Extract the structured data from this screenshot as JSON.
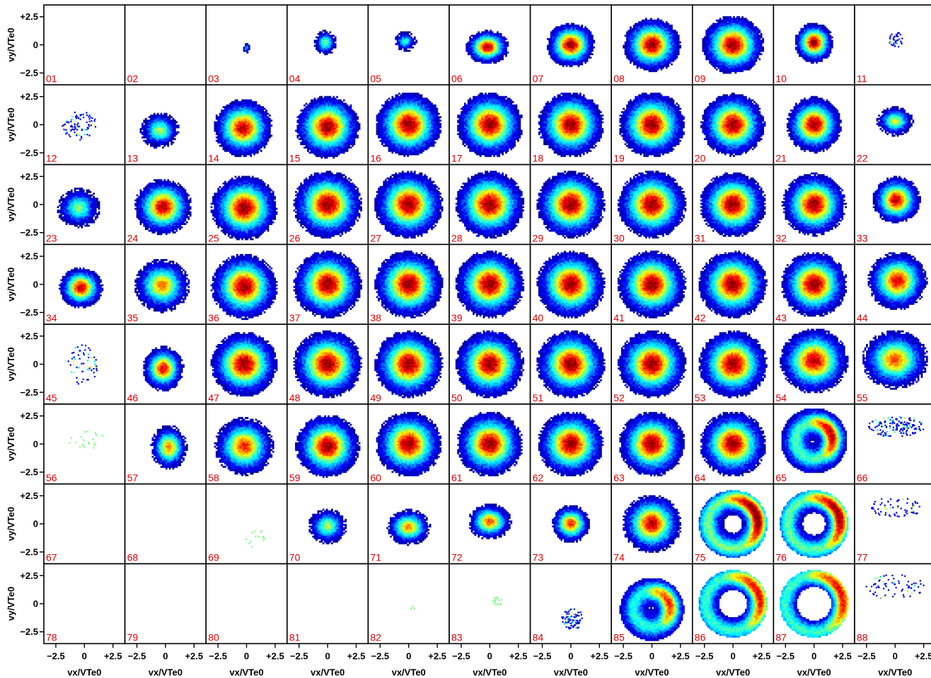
{
  "chart_data": {
    "type": "heatmap",
    "description_layout": "grid",
    "rows": 8,
    "cols": 11,
    "xlabel": "vx/VTe0",
    "ylabel": "vy/VTe0",
    "x_ticks": [
      "−2.5",
      "0",
      "+2.5"
    ],
    "y_ticks": [
      "+2.5",
      "0",
      "−2.5"
    ],
    "xlim": [
      -3.3,
      3.3
    ],
    "ylim": [
      -3.3,
      3.3
    ],
    "colormap": [
      "#00008b",
      "#0000ff",
      "#00a0ff",
      "#00ffff",
      "#80ff80",
      "#ffff00",
      "#ff8000",
      "#ff0000",
      "#8b0000"
    ],
    "label_color": "#e00000",
    "panels": [
      {
        "label": "01",
        "kind": "empty"
      },
      {
        "label": "02",
        "kind": "empty"
      },
      {
        "label": "03",
        "kind": "blob",
        "cx": 0.0,
        "cy": -0.3,
        "rx": 0.3,
        "ry": 0.5,
        "peak": 0.3
      },
      {
        "label": "04",
        "kind": "blob",
        "cx": -0.2,
        "cy": 0.2,
        "rx": 1.0,
        "ry": 1.1,
        "peak": 0.5
      },
      {
        "label": "05",
        "kind": "blob",
        "cx": -0.3,
        "cy": 0.3,
        "rx": 1.0,
        "ry": 0.9,
        "peak": 0.4
      },
      {
        "label": "06",
        "kind": "blob",
        "cx": -0.2,
        "cy": -0.2,
        "rx": 1.9,
        "ry": 1.5,
        "peak": 0.95
      },
      {
        "label": "07",
        "kind": "blob",
        "cx": 0.0,
        "cy": 0.0,
        "rx": 2.1,
        "ry": 2.0,
        "peak": 1.0
      },
      {
        "label": "08",
        "kind": "blob",
        "cx": 0.0,
        "cy": 0.0,
        "rx": 2.5,
        "ry": 2.4,
        "peak": 1.0
      },
      {
        "label": "09",
        "kind": "blob",
        "cx": 0.0,
        "cy": 0.0,
        "rx": 2.7,
        "ry": 2.6,
        "peak": 1.0
      },
      {
        "label": "10",
        "kind": "blob",
        "cx": 0.0,
        "cy": 0.2,
        "rx": 1.7,
        "ry": 1.8,
        "peak": 1.0
      },
      {
        "label": "11",
        "kind": "sparse",
        "cx": 0.0,
        "cy": 0.5,
        "rx": 0.6,
        "ry": 0.7,
        "n": 40
      },
      {
        "label": "12",
        "kind": "sparse",
        "cx": -0.5,
        "cy": 0.0,
        "rx": 1.5,
        "ry": 1.3,
        "n": 90
      },
      {
        "label": "13",
        "kind": "blob",
        "cx": -0.5,
        "cy": -0.5,
        "rx": 1.7,
        "ry": 1.6,
        "peak": 0.55
      },
      {
        "label": "14",
        "kind": "blob",
        "cx": -0.3,
        "cy": -0.3,
        "rx": 2.6,
        "ry": 2.6,
        "peak": 0.95
      },
      {
        "label": "15",
        "kind": "blob",
        "cx": 0.0,
        "cy": -0.2,
        "rx": 2.8,
        "ry": 2.8,
        "peak": 1.0
      },
      {
        "label": "16",
        "kind": "blob",
        "cx": 0.0,
        "cy": 0.0,
        "rx": 2.9,
        "ry": 2.9,
        "peak": 1.0
      },
      {
        "label": "17",
        "kind": "blob",
        "cx": 0.0,
        "cy": 0.0,
        "rx": 2.9,
        "ry": 2.9,
        "peak": 1.0
      },
      {
        "label": "18",
        "kind": "blob",
        "cx": 0.0,
        "cy": 0.0,
        "rx": 2.9,
        "ry": 2.9,
        "peak": 1.0
      },
      {
        "label": "19",
        "kind": "blob",
        "cx": 0.0,
        "cy": 0.0,
        "rx": 2.9,
        "ry": 2.9,
        "peak": 1.0
      },
      {
        "label": "20",
        "kind": "blob",
        "cx": 0.0,
        "cy": 0.0,
        "rx": 2.8,
        "ry": 2.8,
        "peak": 1.0
      },
      {
        "label": "21",
        "kind": "blob",
        "cx": 0.0,
        "cy": 0.0,
        "rx": 2.4,
        "ry": 2.5,
        "peak": 1.0
      },
      {
        "label": "22",
        "kind": "blob",
        "cx": 0.0,
        "cy": 0.3,
        "rx": 1.6,
        "ry": 1.3,
        "peak": 0.6
      },
      {
        "label": "23",
        "kind": "blob",
        "cx": -0.5,
        "cy": -0.3,
        "rx": 1.9,
        "ry": 1.8,
        "peak": 0.5
      },
      {
        "label": "24",
        "kind": "blob",
        "cx": -0.2,
        "cy": -0.2,
        "rx": 2.5,
        "ry": 2.5,
        "peak": 0.95
      },
      {
        "label": "25",
        "kind": "blob",
        "cx": -0.2,
        "cy": -0.3,
        "rx": 2.9,
        "ry": 2.9,
        "peak": 1.0
      },
      {
        "label": "26",
        "kind": "blob",
        "cx": 0.0,
        "cy": 0.0,
        "rx": 3.0,
        "ry": 3.0,
        "peak": 1.0
      },
      {
        "label": "27",
        "kind": "blob",
        "cx": 0.0,
        "cy": 0.0,
        "rx": 3.0,
        "ry": 3.0,
        "peak": 1.0
      },
      {
        "label": "28",
        "kind": "blob",
        "cx": 0.0,
        "cy": 0.0,
        "rx": 3.0,
        "ry": 3.0,
        "peak": 1.0
      },
      {
        "label": "29",
        "kind": "blob",
        "cx": 0.0,
        "cy": 0.0,
        "rx": 3.0,
        "ry": 3.0,
        "peak": 1.0
      },
      {
        "label": "30",
        "kind": "blob",
        "cx": 0.0,
        "cy": 0.0,
        "rx": 3.0,
        "ry": 3.0,
        "peak": 1.0
      },
      {
        "label": "31",
        "kind": "blob",
        "cx": 0.0,
        "cy": 0.0,
        "rx": 2.9,
        "ry": 2.9,
        "peak": 1.0
      },
      {
        "label": "32",
        "kind": "blob",
        "cx": 0.0,
        "cy": 0.0,
        "rx": 2.8,
        "ry": 2.8,
        "peak": 1.0
      },
      {
        "label": "33",
        "kind": "blob",
        "cx": 0.1,
        "cy": 0.4,
        "rx": 2.1,
        "ry": 2.1,
        "peak": 0.95
      },
      {
        "label": "34",
        "kind": "blob",
        "cx": -0.3,
        "cy": -0.3,
        "rx": 1.9,
        "ry": 1.8,
        "peak": 0.95
      },
      {
        "label": "35",
        "kind": "blob",
        "cx": -0.3,
        "cy": -0.1,
        "rx": 2.4,
        "ry": 2.4,
        "peak": 0.75
      },
      {
        "label": "36",
        "kind": "blob",
        "cx": -0.2,
        "cy": -0.2,
        "rx": 2.9,
        "ry": 2.9,
        "peak": 1.0
      },
      {
        "label": "37",
        "kind": "blob",
        "cx": 0.0,
        "cy": 0.0,
        "rx": 3.0,
        "ry": 3.0,
        "peak": 1.0
      },
      {
        "label": "38",
        "kind": "blob",
        "cx": 0.0,
        "cy": 0.0,
        "rx": 3.0,
        "ry": 3.0,
        "peak": 1.0
      },
      {
        "label": "39",
        "kind": "blob",
        "cx": 0.0,
        "cy": 0.0,
        "rx": 3.0,
        "ry": 3.0,
        "peak": 1.0
      },
      {
        "label": "40",
        "kind": "blob",
        "cx": 0.0,
        "cy": 0.0,
        "rx": 3.0,
        "ry": 3.0,
        "peak": 1.0
      },
      {
        "label": "41",
        "kind": "blob",
        "cx": 0.0,
        "cy": 0.0,
        "rx": 3.0,
        "ry": 3.0,
        "peak": 1.0
      },
      {
        "label": "42",
        "kind": "blob",
        "cx": 0.0,
        "cy": 0.0,
        "rx": 3.0,
        "ry": 3.0,
        "peak": 1.0
      },
      {
        "label": "43",
        "kind": "blob",
        "cx": 0.0,
        "cy": 0.0,
        "rx": 2.9,
        "ry": 2.9,
        "peak": 1.0
      },
      {
        "label": "44",
        "kind": "blob",
        "cx": 0.2,
        "cy": 0.3,
        "rx": 2.6,
        "ry": 2.6,
        "peak": 0.9
      },
      {
        "label": "45",
        "kind": "sparse",
        "cx": -0.2,
        "cy": 0.0,
        "rx": 1.3,
        "ry": 1.8,
        "n": 60
      },
      {
        "label": "46",
        "kind": "blob",
        "cx": -0.2,
        "cy": -0.4,
        "rx": 1.8,
        "ry": 2.0,
        "peak": 0.9
      },
      {
        "label": "47",
        "kind": "blob",
        "cx": -0.2,
        "cy": 0.0,
        "rx": 2.9,
        "ry": 2.9,
        "peak": 1.0
      },
      {
        "label": "48",
        "kind": "blob",
        "cx": 0.0,
        "cy": 0.0,
        "rx": 3.0,
        "ry": 3.0,
        "peak": 1.0
      },
      {
        "label": "49",
        "kind": "blob",
        "cx": 0.0,
        "cy": 0.0,
        "rx": 3.0,
        "ry": 3.0,
        "peak": 1.0
      },
      {
        "label": "50",
        "kind": "blob",
        "cx": 0.0,
        "cy": 0.0,
        "rx": 3.0,
        "ry": 3.0,
        "peak": 1.0
      },
      {
        "label": "51",
        "kind": "blob",
        "cx": 0.0,
        "cy": 0.0,
        "rx": 3.0,
        "ry": 3.0,
        "peak": 1.0
      },
      {
        "label": "52",
        "kind": "blob",
        "cx": 0.0,
        "cy": 0.0,
        "rx": 3.0,
        "ry": 3.0,
        "peak": 1.0
      },
      {
        "label": "53",
        "kind": "blob",
        "cx": 0.0,
        "cy": 0.0,
        "rx": 3.0,
        "ry": 3.0,
        "peak": 1.0
      },
      {
        "label": "54",
        "kind": "blob",
        "cx": 0.0,
        "cy": 0.3,
        "rx": 3.0,
        "ry": 2.9,
        "peak": 0.95
      },
      {
        "label": "55",
        "kind": "blob",
        "cx": 0.0,
        "cy": 0.4,
        "rx": 2.9,
        "ry": 2.6,
        "peak": 0.8
      },
      {
        "label": "56",
        "kind": "sparse",
        "cx": 0.0,
        "cy": 0.5,
        "rx": 1.7,
        "ry": 0.9,
        "n": 20,
        "color": "#80ff80"
      },
      {
        "label": "57",
        "kind": "blob",
        "cx": 0.3,
        "cy": -0.3,
        "rx": 1.6,
        "ry": 2.0,
        "peak": 0.75
      },
      {
        "label": "58",
        "kind": "blob",
        "cx": -0.2,
        "cy": -0.2,
        "rx": 2.6,
        "ry": 2.6,
        "peak": 0.85
      },
      {
        "label": "59",
        "kind": "blob",
        "cx": 0.0,
        "cy": -0.2,
        "rx": 2.8,
        "ry": 2.8,
        "peak": 1.0
      },
      {
        "label": "60",
        "kind": "blob",
        "cx": 0.0,
        "cy": 0.0,
        "rx": 2.9,
        "ry": 2.9,
        "peak": 1.0
      },
      {
        "label": "61",
        "kind": "blob",
        "cx": 0.0,
        "cy": 0.0,
        "rx": 2.9,
        "ry": 2.9,
        "peak": 1.0
      },
      {
        "label": "62",
        "kind": "blob",
        "cx": 0.0,
        "cy": 0.0,
        "rx": 2.9,
        "ry": 2.9,
        "peak": 1.0
      },
      {
        "label": "63",
        "kind": "blob",
        "cx": 0.0,
        "cy": 0.0,
        "rx": 2.9,
        "ry": 2.9,
        "peak": 1.0
      },
      {
        "label": "64",
        "kind": "blob",
        "cx": 0.0,
        "cy": 0.0,
        "rx": 2.9,
        "ry": 2.9,
        "peak": 1.0
      },
      {
        "label": "65",
        "kind": "arc",
        "cx": 0.0,
        "cy": 0.3,
        "R": 2.9,
        "arc_peak": 0.9
      },
      {
        "label": "66",
        "kind": "sparse",
        "cx": 0.0,
        "cy": 1.6,
        "rx": 2.5,
        "ry": 0.9,
        "n": 150
      },
      {
        "label": "67",
        "kind": "empty"
      },
      {
        "label": "68",
        "kind": "empty"
      },
      {
        "label": "69",
        "kind": "sparse",
        "cx": 0.8,
        "cy": -1.2,
        "rx": 1.0,
        "ry": 0.9,
        "n": 14,
        "color": "#80ff80"
      },
      {
        "label": "70",
        "kind": "blob",
        "cx": 0.0,
        "cy": -0.2,
        "rx": 1.7,
        "ry": 1.6,
        "peak": 0.55
      },
      {
        "label": "71",
        "kind": "blob",
        "cx": 0.0,
        "cy": -0.3,
        "rx": 1.9,
        "ry": 1.6,
        "peak": 0.75
      },
      {
        "label": "72",
        "kind": "blob",
        "cx": 0.0,
        "cy": 0.2,
        "rx": 1.9,
        "ry": 1.6,
        "peak": 0.8
      },
      {
        "label": "73",
        "kind": "blob",
        "cx": 0.0,
        "cy": 0.0,
        "rx": 1.7,
        "ry": 1.7,
        "peak": 0.85
      },
      {
        "label": "74",
        "kind": "blob",
        "cx": 0.0,
        "cy": 0.0,
        "rx": 2.6,
        "ry": 2.6,
        "peak": 0.95
      },
      {
        "label": "75",
        "kind": "ring",
        "cx": 0.0,
        "cy": 0.0,
        "R": 3.0,
        "hole": 0.8,
        "arc_peak": 1.0
      },
      {
        "label": "76",
        "kind": "ring",
        "cx": 0.0,
        "cy": 0.0,
        "R": 3.0,
        "hole": 1.0,
        "arc_peak": 0.95
      },
      {
        "label": "77",
        "kind": "sparse",
        "cx": 0.0,
        "cy": 1.5,
        "rx": 2.2,
        "ry": 1.0,
        "n": 70
      },
      {
        "label": "78",
        "kind": "empty"
      },
      {
        "label": "79",
        "kind": "empty"
      },
      {
        "label": "80",
        "kind": "empty"
      },
      {
        "label": "81",
        "kind": "empty"
      },
      {
        "label": "82",
        "kind": "sparse",
        "cx": 0.3,
        "cy": -0.3,
        "rx": 0.3,
        "ry": 0.2,
        "n": 3,
        "color": "#80ff80"
      },
      {
        "label": "83",
        "kind": "sparse",
        "cx": 0.6,
        "cy": 0.3,
        "rx": 0.4,
        "ry": 0.4,
        "n": 15,
        "color": "#80ff80"
      },
      {
        "label": "84",
        "kind": "sparse",
        "cx": 0.1,
        "cy": -1.3,
        "rx": 1.0,
        "ry": 0.9,
        "n": 90
      },
      {
        "label": "85",
        "kind": "arc",
        "cx": 0.0,
        "cy": -0.5,
        "R": 2.8,
        "arc_peak": 0.8
      },
      {
        "label": "86",
        "kind": "ring",
        "cx": 0.0,
        "cy": 0.0,
        "R": 3.0,
        "hole": 1.2,
        "arc_peak": 0.85
      },
      {
        "label": "87",
        "kind": "ring",
        "cx": 0.0,
        "cy": 0.0,
        "R": 3.0,
        "hole": 1.5,
        "arc_peak": 0.85
      },
      {
        "label": "88",
        "kind": "sparse",
        "cx": 0.0,
        "cy": 1.5,
        "rx": 2.6,
        "ry": 1.2,
        "n": 70
      }
    ]
  }
}
